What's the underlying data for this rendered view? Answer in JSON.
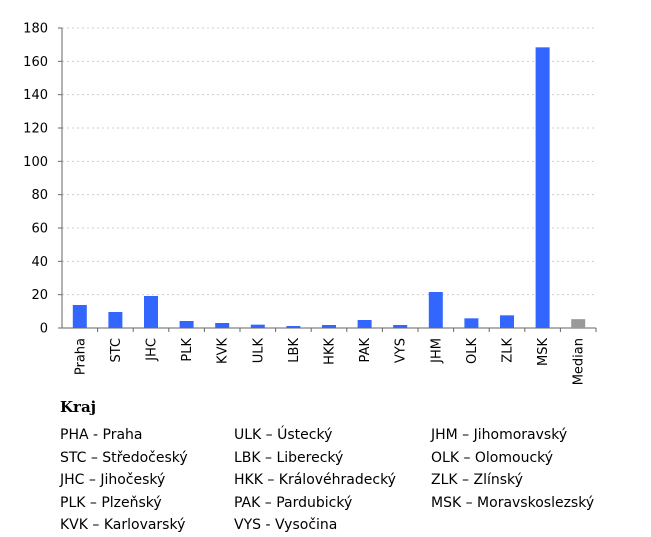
{
  "chart_data": {
    "type": "bar",
    "categories": [
      "Praha",
      "STC",
      "JHC",
      "PLK",
      "KVK",
      "ULK",
      "LBK",
      "HKK",
      "PAK",
      "VYS",
      "JHM",
      "OLK",
      "ZLK",
      "MSK",
      "Median"
    ],
    "values": [
      13.8,
      9.6,
      19.2,
      4.2,
      3.0,
      2.0,
      1.2,
      1.8,
      4.8,
      1.8,
      21.6,
      5.8,
      7.6,
      168.4,
      5.3
    ],
    "ylim": [
      0,
      180
    ],
    "yticks": [
      "0",
      "20",
      "40",
      "60",
      "80",
      "100",
      "120",
      "140",
      "160",
      "180"
    ],
    "grid": true,
    "colors": {
      "bar": "#3366ff",
      "median_bar": "#999999",
      "grid": "#cccccc",
      "axis": "#666666"
    }
  },
  "legend": {
    "title": "Kraj",
    "columns": [
      [
        "PHA - Praha",
        "STC – Středočeský",
        "JHC – Jihočeský",
        "PLK – Plzeňský",
        "KVK – Karlovarský"
      ],
      [
        "ULK – Ústecký",
        "LBK – Liberecký",
        "HKK – Královéhradecký",
        "PAK – Pardubický",
        "VYS - Vysočina"
      ],
      [
        "JHM – Jihomoravský",
        "OLK – Olomoucký",
        "ZLK – Zlínský",
        "MSK – Moravskoslezský"
      ]
    ]
  }
}
